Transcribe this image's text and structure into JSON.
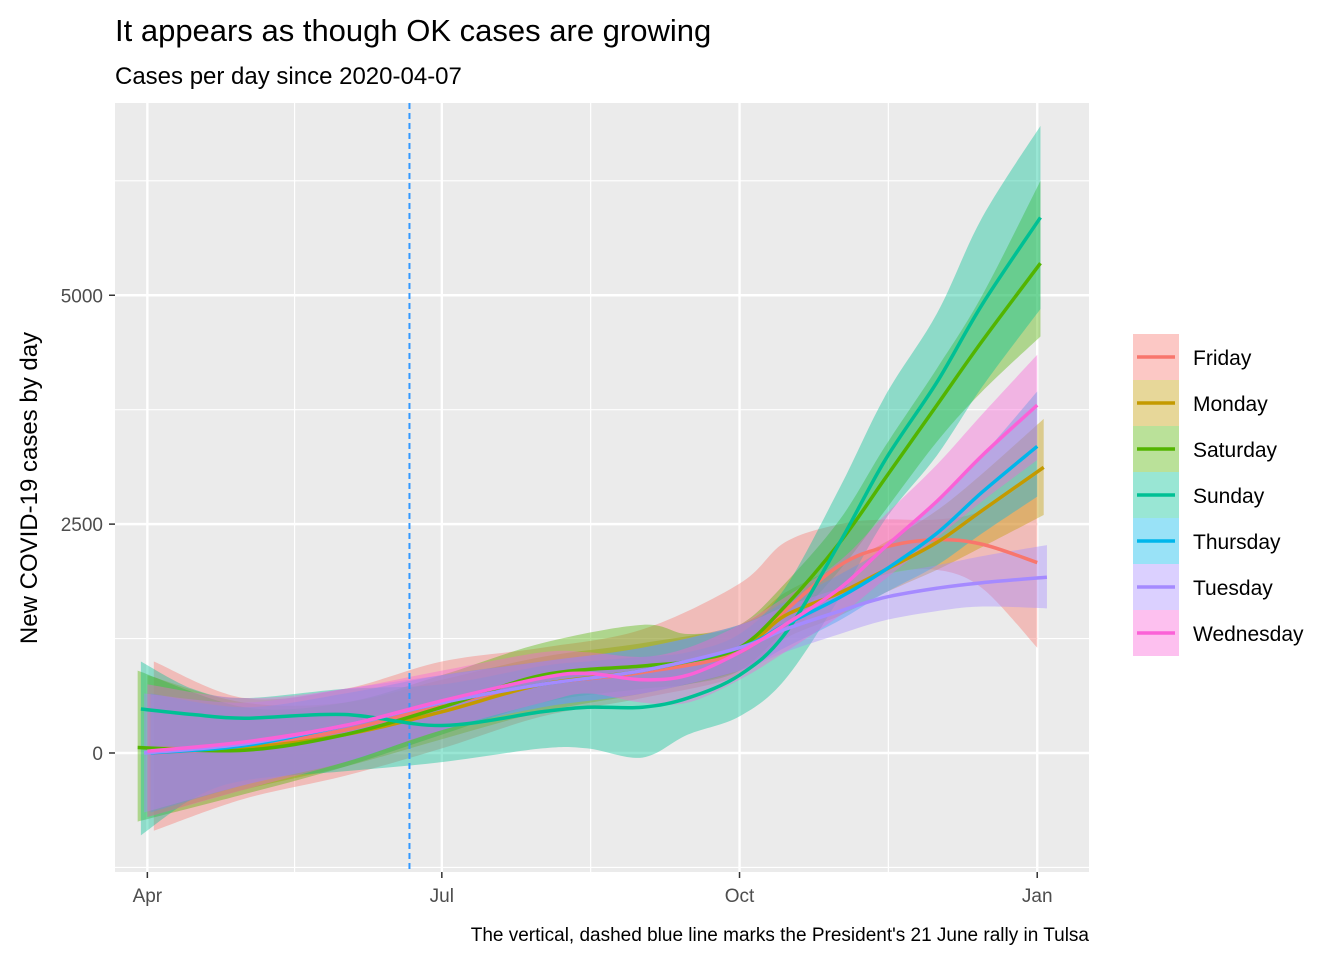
{
  "chart_data": {
    "type": "line",
    "title": "It appears as though OK cases are growing",
    "subtitle": "Cases per day since 2020-04-07",
    "ylabel": "New COVID-19 cases by day",
    "xlabel": "",
    "caption": "The vertical, dashed blue line marks the President's 21 June rally in Tulsa",
    "ylim": [
      -1300,
      7100
    ],
    "xlim": [
      "2020-03-22",
      "2021-01-17"
    ],
    "y_ticks": [
      0,
      2500,
      5000
    ],
    "y_tick_labels": [
      "0",
      "2500",
      "5000"
    ],
    "x_ticks": [
      "2020-04-01",
      "2020-07-01",
      "2020-10-01",
      "2021-01-01"
    ],
    "x_tick_labels": [
      "Apr",
      "Jul",
      "Oct",
      "Jan"
    ],
    "grid": true,
    "legend_position": "right",
    "vline": {
      "x": "2020-06-21",
      "color": "#3399ff",
      "style": "dashed"
    },
    "series": [
      {
        "name": "Friday",
        "color": "#F8766D",
        "x": [
          "2020-04-03",
          "2020-05-01",
          "2020-06-01",
          "2020-07-01",
          "2020-08-01",
          "2020-09-01",
          "2020-10-01",
          "2020-10-15",
          "2020-11-01",
          "2020-11-15",
          "2020-12-01",
          "2020-12-15",
          "2021-01-01"
        ],
        "y": [
          0,
          70,
          250,
          520,
          750,
          880,
          1100,
          1550,
          2050,
          2250,
          2330,
          2280,
          2080
        ],
        "lower": [
          -850,
          -500,
          -250,
          50,
          400,
          600,
          850,
          1300,
          1700,
          1950,
          2000,
          1800,
          1150
        ],
        "upper": [
          1000,
          600,
          700,
          1000,
          1150,
          1350,
          1850,
          2300,
          2500,
          2550,
          2550,
          2650,
          3050
        ]
      },
      {
        "name": "Monday",
        "color": "#C49A00",
        "x": [
          "2020-04-01",
          "2020-05-01",
          "2020-06-01",
          "2020-07-01",
          "2020-08-01",
          "2020-09-01",
          "2020-10-01",
          "2020-10-15",
          "2020-11-01",
          "2020-11-15",
          "2020-12-01",
          "2020-12-15",
          "2021-01-03"
        ],
        "y": [
          50,
          60,
          200,
          450,
          750,
          900,
          1150,
          1500,
          1750,
          2000,
          2300,
          2650,
          3120
        ],
        "lower": [
          -700,
          -400,
          -150,
          150,
          450,
          650,
          900,
          1250,
          1500,
          1750,
          2000,
          2250,
          2600
        ],
        "upper": [
          850,
          550,
          550,
          800,
          1050,
          1200,
          1400,
          1750,
          2050,
          2300,
          2650,
          3050,
          3650
        ]
      },
      {
        "name": "Saturday",
        "color": "#53B400",
        "x": [
          "2020-03-29",
          "2020-05-01",
          "2020-06-01",
          "2020-07-01",
          "2020-08-01",
          "2020-09-01",
          "2020-09-15",
          "2020-10-01",
          "2020-10-15",
          "2020-11-01",
          "2020-11-15",
          "2020-12-01",
          "2020-12-15",
          "2021-01-02"
        ],
        "y": [
          60,
          30,
          200,
          500,
          850,
          950,
          1000,
          1150,
          1600,
          2300,
          3000,
          3800,
          4500,
          5350
        ],
        "lower": [
          -750,
          -450,
          -150,
          200,
          550,
          700,
          750,
          900,
          1350,
          2000,
          2650,
          3400,
          3950,
          4550
        ],
        "upper": [
          900,
          500,
          550,
          850,
          1200,
          1400,
          1300,
          1400,
          1850,
          2550,
          3350,
          4200,
          5000,
          6250
        ]
      },
      {
        "name": "Sunday",
        "color": "#00C094",
        "x": [
          "2020-03-30",
          "2020-04-15",
          "2020-05-01",
          "2020-06-01",
          "2020-07-01",
          "2020-08-01",
          "2020-08-15",
          "2020-09-01",
          "2020-09-15",
          "2020-10-01",
          "2020-10-15",
          "2020-11-01",
          "2020-11-15",
          "2020-12-01",
          "2020-12-15",
          "2021-01-02"
        ],
        "y": [
          480,
          420,
          380,
          420,
          300,
          450,
          500,
          500,
          600,
          850,
          1300,
          2300,
          3200,
          4050,
          4900,
          5850
        ],
        "lower": [
          -900,
          -500,
          -300,
          -200,
          -100,
          50,
          50,
          -50,
          200,
          400,
          800,
          1700,
          2550,
          3250,
          4000,
          4850
        ],
        "upper": [
          1000,
          700,
          600,
          700,
          750,
          950,
          1000,
          1050,
          1100,
          1300,
          1800,
          2900,
          3900,
          4800,
          5850,
          6850
        ]
      },
      {
        "name": "Thursday",
        "color": "#00B6EB",
        "x": [
          "2020-04-02",
          "2020-05-01",
          "2020-06-01",
          "2020-07-01",
          "2020-08-01",
          "2020-09-01",
          "2020-10-01",
          "2020-10-15",
          "2020-11-01",
          "2020-11-15",
          "2020-12-01",
          "2020-12-15",
          "2021-01-01"
        ],
        "y": [
          0,
          80,
          300,
          550,
          750,
          900,
          1150,
          1400,
          1700,
          2000,
          2400,
          2850,
          3350
        ],
        "lower": [
          -650,
          -350,
          -100,
          250,
          500,
          650,
          900,
          1150,
          1450,
          1750,
          2050,
          2400,
          2800
        ],
        "upper": [
          650,
          500,
          650,
          850,
          1000,
          1150,
          1400,
          1650,
          1950,
          2250,
          2750,
          3250,
          3950
        ]
      },
      {
        "name": "Tuesday",
        "color": "#A58AFF",
        "x": [
          "2020-03-31",
          "2020-05-01",
          "2020-06-01",
          "2020-07-01",
          "2020-08-01",
          "2020-09-01",
          "2020-10-01",
          "2020-10-15",
          "2020-11-01",
          "2020-11-15",
          "2020-12-01",
          "2020-12-15",
          "2021-01-04"
        ],
        "y": [
          0,
          100,
          300,
          550,
          750,
          900,
          1150,
          1350,
          1550,
          1700,
          1800,
          1860,
          1920
        ],
        "lower": [
          -650,
          -350,
          -100,
          250,
          500,
          650,
          900,
          1100,
          1300,
          1450,
          1550,
          1600,
          1580
        ],
        "upper": [
          650,
          550,
          700,
          850,
          1000,
          1150,
          1400,
          1600,
          1800,
          1950,
          2050,
          2150,
          2270
        ]
      },
      {
        "name": "Wednesday",
        "color": "#FB61D7",
        "x": [
          "2020-04-01",
          "2020-05-01",
          "2020-06-01",
          "2020-07-01",
          "2020-08-01",
          "2020-08-15",
          "2020-09-01",
          "2020-09-15",
          "2020-10-01",
          "2020-10-15",
          "2020-11-01",
          "2020-11-15",
          "2020-12-01",
          "2020-12-15",
          "2021-01-01"
        ],
        "y": [
          20,
          120,
          300,
          570,
          820,
          870,
          800,
          850,
          1100,
          1400,
          1800,
          2250,
          2750,
          3250,
          3800
        ],
        "lower": [
          -700,
          -400,
          -100,
          250,
          550,
          650,
          550,
          550,
          800,
          1100,
          1500,
          1900,
          2350,
          2750,
          3200
        ],
        "upper": [
          750,
          600,
          700,
          900,
          1100,
          1100,
          1050,
          1150,
          1400,
          1700,
          2100,
          2600,
          3150,
          3700,
          4350
        ]
      }
    ]
  }
}
